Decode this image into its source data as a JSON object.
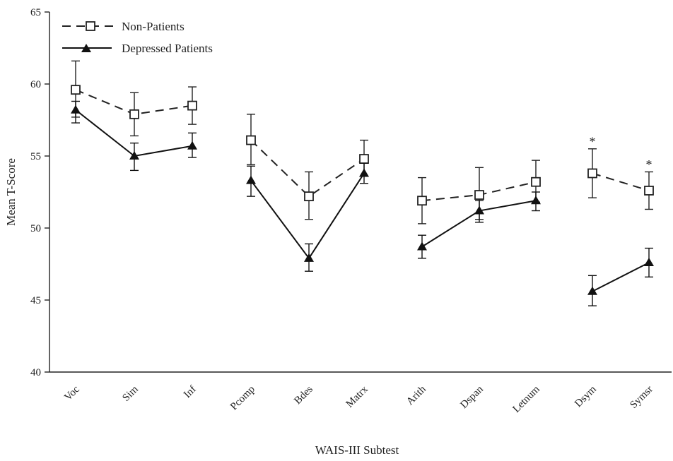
{
  "chart_data": {
    "type": "line",
    "xlabel": "WAIS-III Subtest",
    "ylabel": "Mean T-Score",
    "ylim": [
      40,
      65
    ],
    "yticks": [
      40,
      45,
      50,
      55,
      60,
      65
    ],
    "grid": false,
    "legend_position": "top-left",
    "categories": [
      "Voc",
      "Sim",
      "Inf",
      "Pcomp",
      "Bdes",
      "Matrx",
      "Arith",
      "Dspan",
      "Letnum",
      "Dsym",
      "Symsr"
    ],
    "category_groups": [
      [
        0,
        1,
        2
      ],
      [
        3,
        4,
        5
      ],
      [
        6,
        7,
        8
      ],
      [
        9,
        10
      ]
    ],
    "series": [
      {
        "name": "Non-Patients",
        "line_style": "dashed",
        "marker": "open-square",
        "color": "#222222",
        "values": [
          59.6,
          57.9,
          58.5,
          56.1,
          52.2,
          54.8,
          51.9,
          52.3,
          53.2,
          53.8,
          52.6
        ],
        "error_upper": [
          61.6,
          59.4,
          59.8,
          57.9,
          53.9,
          56.1,
          53.5,
          54.2,
          54.7,
          55.5,
          53.9
        ],
        "error_lower": [
          57.7,
          56.4,
          57.2,
          54.4,
          50.6,
          53.6,
          50.3,
          50.6,
          51.8,
          52.1,
          51.3
        ]
      },
      {
        "name": "Depressed Patients",
        "line_style": "solid",
        "marker": "filled-triangle",
        "color": "#111111",
        "values": [
          58.2,
          55.0,
          55.7,
          53.3,
          47.9,
          53.8,
          48.7,
          51.2,
          51.9,
          45.6,
          47.6
        ],
        "error_upper": [
          58.8,
          55.9,
          56.6,
          54.3,
          48.9,
          54.5,
          49.5,
          51.9,
          52.5,
          46.7,
          48.6
        ],
        "error_lower": [
          57.3,
          54.0,
          54.9,
          52.2,
          47.0,
          53.1,
          47.9,
          50.4,
          51.2,
          44.6,
          46.6
        ]
      }
    ],
    "annotations": [
      {
        "text": "*",
        "category": "Dsym",
        "value": 56.2
      },
      {
        "text": "*",
        "category": "Symsr",
        "value": 54.6
      }
    ]
  }
}
